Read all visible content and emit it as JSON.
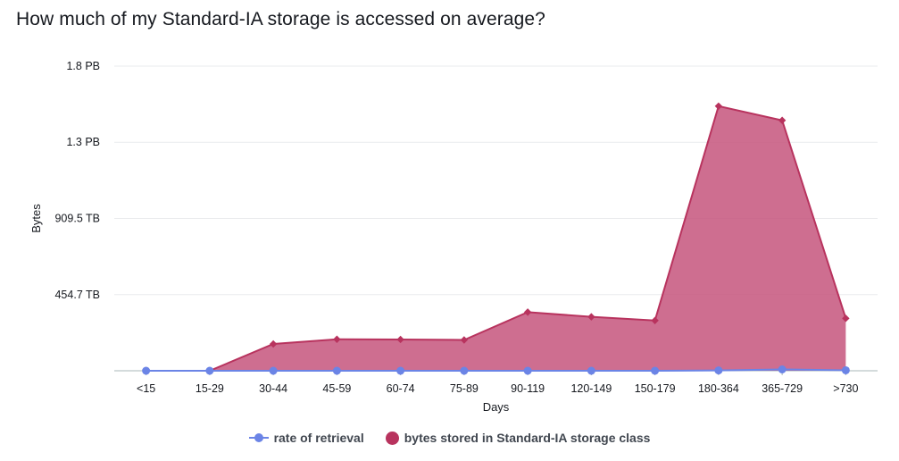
{
  "title": "How much of my Standard-IA storage is accessed on average?",
  "chart_data": {
    "type": "area",
    "title": "How much of my Standard-IA storage is accessed on average?",
    "xlabel": "Days",
    "ylabel": "Bytes",
    "categories": [
      "<15",
      "15-29",
      "30-44",
      "45-59",
      "60-74",
      "75-89",
      "90-119",
      "120-149",
      "150-179",
      "180-364",
      "365-729",
      ">730"
    ],
    "y_ticks": [
      {
        "value": 0,
        "label": ""
      },
      {
        "value": 454.7,
        "label": "454.7 TB"
      },
      {
        "value": 909.5,
        "label": "909.5 TB"
      },
      {
        "value": 1364.2,
        "label": "1.3 PB"
      },
      {
        "value": 1818.9,
        "label": "1.8 PB"
      }
    ],
    "ylim": [
      0,
      1818.9
    ],
    "y_unit": "TB",
    "series": [
      {
        "name": "bytes stored in Standard-IA storage class",
        "kind": "area",
        "color": "#b8335e",
        "fill": "#c5557c",
        "values": [
          0,
          0,
          160,
          188,
          187,
          184,
          350,
          322,
          300,
          1580,
          1495,
          313
        ]
      },
      {
        "name": "rate of retrieval",
        "kind": "line",
        "color": "#6b84e6",
        "values": [
          0,
          0,
          0,
          0,
          0,
          0,
          0,
          0,
          0,
          2,
          8,
          3
        ]
      }
    ]
  },
  "legend": {
    "retrieval_label": "rate of retrieval",
    "bytes_label": "bytes stored in Standard-IA storage class"
  }
}
